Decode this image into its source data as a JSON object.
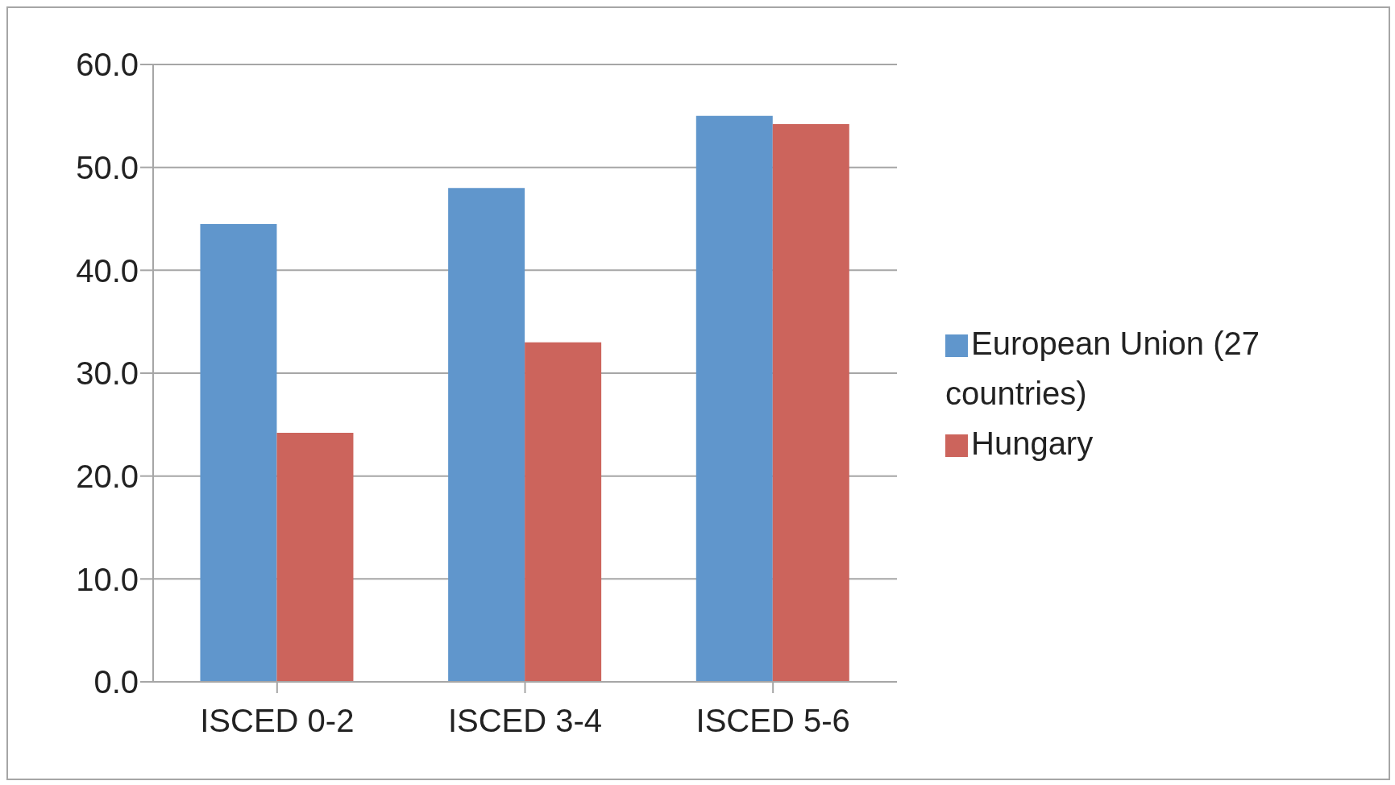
{
  "chart_data": {
    "type": "bar",
    "categories": [
      "ISCED 0-2",
      "ISCED 3-4",
      "ISCED 5-6"
    ],
    "series": [
      {
        "name": "European Union (27 countries)",
        "color": "#6096cc",
        "values": [
          44.5,
          48.0,
          55.0
        ]
      },
      {
        "name": "Hungary",
        "color": "#cc645c",
        "values": [
          24.2,
          33.0,
          54.2
        ]
      }
    ],
    "ylim": [
      0,
      60
    ],
    "yticks": [
      {
        "value": 0,
        "label": "0.0"
      },
      {
        "value": 10,
        "label": "10.0"
      },
      {
        "value": 20,
        "label": "20.0"
      },
      {
        "value": 30,
        "label": "30.0"
      },
      {
        "value": 40,
        "label": "40.0"
      },
      {
        "value": 50,
        "label": "50.0"
      },
      {
        "value": 60,
        "label": "60.0"
      }
    ],
    "grid": "y",
    "legend": "right"
  }
}
